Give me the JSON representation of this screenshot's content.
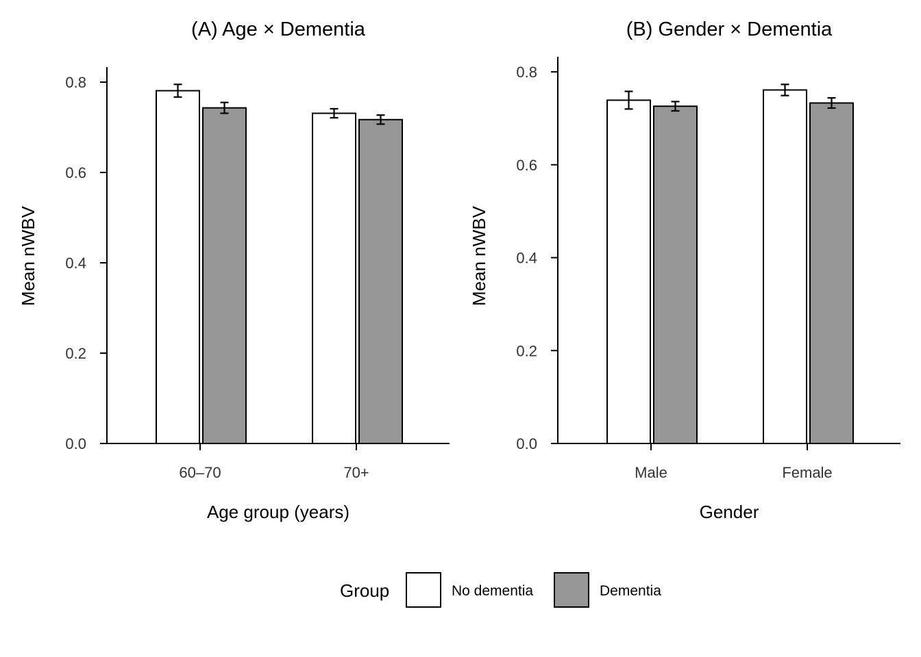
{
  "chart_data": [
    {
      "type": "bar",
      "title": "(A) Age × Dementia",
      "xlabel": "Age group (years)",
      "ylabel": "Mean nWBV",
      "categories": [
        "60–70",
        "70+"
      ],
      "ylim": [
        0,
        0.8
      ],
      "yticks": [
        "0.0",
        "0.2",
        "0.4",
        "0.6",
        "0.8"
      ],
      "grid": false,
      "series": [
        {
          "name": "No dementia",
          "values": [
            0.781,
            0.731
          ],
          "error": [
            0.014,
            0.01
          ]
        },
        {
          "name": "Dementia",
          "values": [
            0.743,
            0.717
          ],
          "error": [
            0.012,
            0.01
          ]
        }
      ]
    },
    {
      "type": "bar",
      "title": "(B) Gender × Dementia",
      "xlabel": "Gender",
      "ylabel": "Mean nWBV",
      "categories": [
        "Male",
        "Female"
      ],
      "ylim": [
        0,
        0.8
      ],
      "yticks": [
        "0.0",
        "0.2",
        "0.4",
        "0.6",
        "0.8"
      ],
      "grid": false,
      "series": [
        {
          "name": "No dementia",
          "values": [
            0.739,
            0.761
          ],
          "error": [
            0.019,
            0.012
          ]
        },
        {
          "name": "Dementia",
          "values": [
            0.726,
            0.733
          ],
          "error": [
            0.01,
            0.011
          ]
        }
      ]
    }
  ],
  "legend": {
    "title": "Group",
    "position": "bottom",
    "items": [
      {
        "label": "No dementia",
        "color": "#ffffff"
      },
      {
        "label": "Dementia",
        "color": "#969696"
      }
    ]
  },
  "colors": {
    "No dementia": "#ffffff",
    "Dementia": "#969696",
    "outline": "#000000"
  }
}
